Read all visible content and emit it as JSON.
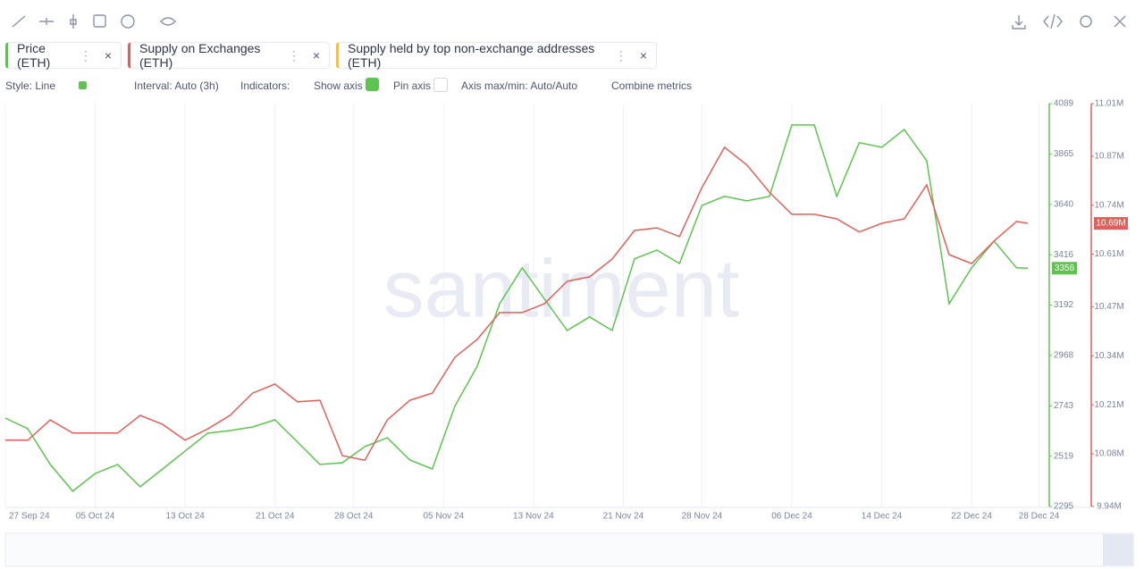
{
  "toolbar": {
    "options": {
      "style": "Style: Line",
      "interval": "Interval: Auto (3h)",
      "indicators": "Indicators:",
      "show_axis": "Show axis",
      "pin_axis": "Pin axis",
      "axis_range": "Axis max/min: Auto/Auto",
      "combine": "Combine metrics"
    }
  },
  "hidden_series": [
    {
      "name": "Supply held by top non-exchange addresses (ETH)",
      "color": "#f3c13a"
    }
  ],
  "chart_data": {
    "type": "line",
    "watermark": "santiment",
    "x": [
      "2024-09-27",
      "2024-09-29",
      "2024-10-01",
      "2024-10-03",
      "2024-10-05",
      "2024-10-07",
      "2024-10-09",
      "2024-10-11",
      "2024-10-13",
      "2024-10-15",
      "2024-10-17",
      "2024-10-19",
      "2024-10-21",
      "2024-10-23",
      "2024-10-25",
      "2024-10-27",
      "2024-10-29",
      "2024-10-31",
      "2024-11-02",
      "2024-11-04",
      "2024-11-06",
      "2024-11-08",
      "2024-11-10",
      "2024-11-12",
      "2024-11-14",
      "2024-11-16",
      "2024-11-18",
      "2024-11-20",
      "2024-11-22",
      "2024-11-24",
      "2024-11-26",
      "2024-11-28",
      "2024-11-30",
      "2024-12-02",
      "2024-12-04",
      "2024-12-06",
      "2024-12-08",
      "2024-12-10",
      "2024-12-12",
      "2024-12-14",
      "2024-12-16",
      "2024-12-18",
      "2024-12-20",
      "2024-12-22",
      "2024-12-24",
      "2024-12-26",
      "2024-12-27"
    ],
    "xlim": [
      "2024-09-27",
      "2024-12-27"
    ],
    "xticks": [
      {
        "value": "2024-09-27",
        "label": "27 Sep 24"
      },
      {
        "value": "2024-10-05",
        "label": "05 Oct 24"
      },
      {
        "value": "2024-10-13",
        "label": "13 Oct 24"
      },
      {
        "value": "2024-10-21",
        "label": "21 Oct 24"
      },
      {
        "value": "2024-10-28",
        "label": "28 Oct 24"
      },
      {
        "value": "2024-11-05",
        "label": "05 Nov 24"
      },
      {
        "value": "2024-11-13",
        "label": "13 Nov 24"
      },
      {
        "value": "2024-11-21",
        "label": "21 Nov 24"
      },
      {
        "value": "2024-11-28",
        "label": "28 Nov 24"
      },
      {
        "value": "2024-12-06",
        "label": "06 Dec 24"
      },
      {
        "value": "2024-12-14",
        "label": "14 Dec 24"
      },
      {
        "value": "2024-12-22",
        "label": "22 Dec 24"
      },
      {
        "value": "2024-12-28",
        "label": "28 Dec 24"
      }
    ],
    "ylim": [
      2295,
      4089
    ],
    "yticks": [
      2295,
      2519,
      2743,
      2968,
      3192,
      3416,
      3640,
      3865,
      4089
    ],
    "y2lim": [
      9940000,
      11010000
    ],
    "y2ticks": [
      {
        "value": 9940000,
        "label": "9.94M"
      },
      {
        "value": 10080000,
        "label": "10.08M"
      },
      {
        "value": 10210000,
        "label": "10.21M"
      },
      {
        "value": 10340000,
        "label": "10.34M"
      },
      {
        "value": 10470000,
        "label": "10.47M"
      },
      {
        "value": 10610000,
        "label": "10.61M"
      },
      {
        "value": 10740000,
        "label": "10.74M"
      },
      {
        "value": 10870000,
        "label": "10.87M"
      },
      {
        "value": 11010000,
        "label": "11.01M"
      }
    ],
    "grid": true,
    "series": [
      {
        "name": "Price (ETH)",
        "color": "#5dc44f",
        "end_label": "3356",
        "values": [
          2689,
          2641,
          2482,
          2363,
          2442,
          2482,
          2383,
          2462,
          2542,
          2621,
          2633,
          2649,
          2681,
          2582,
          2482,
          2490,
          2562,
          2601,
          2502,
          2462,
          2741,
          2920,
          3198,
          3358,
          3218,
          3079,
          3139,
          3079,
          3398,
          3437,
          3377,
          3636,
          3676,
          3656,
          3676,
          3994,
          3994,
          3676,
          3915,
          3895,
          3974,
          3835,
          3198,
          3358,
          3477,
          3358,
          3356
        ]
      },
      {
        "name": "Supply on Exchanges (ETH)",
        "color": "#e0615a",
        "axis": "y2",
        "end_label": "10.69M",
        "values": [
          10116000,
          10116000,
          10170000,
          10135000,
          10135000,
          10135000,
          10182000,
          10158000,
          10116000,
          10146000,
          10182000,
          10241000,
          10265000,
          10218000,
          10222000,
          10075000,
          10063000,
          10170000,
          10222000,
          10241000,
          10336000,
          10384000,
          10455000,
          10455000,
          10479000,
          10538000,
          10550000,
          10597000,
          10673000,
          10680000,
          10657000,
          10787000,
          10894000,
          10847000,
          10775000,
          10716000,
          10716000,
          10704000,
          10669000,
          10692000,
          10704000,
          10794000,
          10609000,
          10585000,
          10645000,
          10697000,
          10692000
        ]
      }
    ]
  }
}
